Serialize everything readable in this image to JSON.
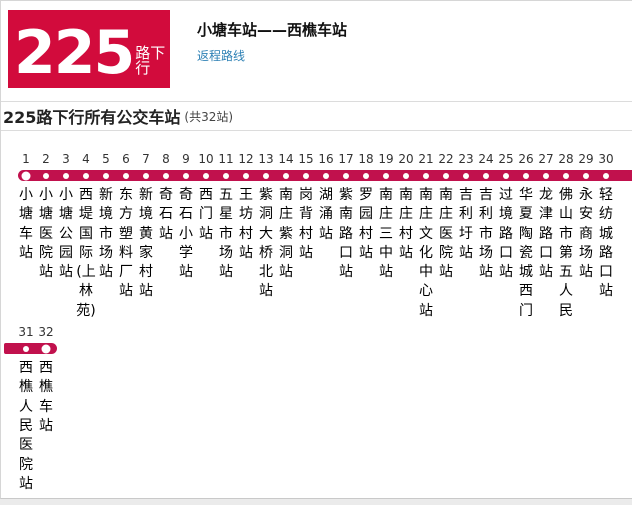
{
  "header": {
    "route_number": "225",
    "route_direction": "路下行",
    "title": "小塘车站——西樵车站",
    "return_link": "返程路线"
  },
  "section": {
    "title": "225路下行所有公交车站",
    "count": "(共32站)"
  },
  "colors": {
    "badge_red": "#d20b3c",
    "route_line": "#c1114d",
    "link_blue": "#2e81b5",
    "border_gray": "#dcdcdc"
  },
  "route": {
    "rows": [
      {
        "stations": [
          {
            "no": "1",
            "name": "小塘车站",
            "terminal": true
          },
          {
            "no": "2",
            "name": "小塘医院站"
          },
          {
            "no": "3",
            "name": "小塘公园站"
          },
          {
            "no": "4",
            "name": "西堤国际(上林苑)"
          },
          {
            "no": "5",
            "name": "新境市场站"
          },
          {
            "no": "6",
            "name": "东方塑料厂站"
          },
          {
            "no": "7",
            "name": "新境黄家村站"
          },
          {
            "no": "8",
            "name": "奇石站"
          },
          {
            "no": "9",
            "name": "奇石小学站"
          },
          {
            "no": "10",
            "name": "西门站"
          },
          {
            "no": "11",
            "name": "五星市场站"
          },
          {
            "no": "12",
            "name": "王坊村站"
          },
          {
            "no": "13",
            "name": "紫洞大桥北站"
          },
          {
            "no": "14",
            "name": "南庄紫洞站"
          },
          {
            "no": "15",
            "name": "岗背村站"
          },
          {
            "no": "16",
            "name": "湖涌站"
          },
          {
            "no": "17",
            "name": "紫南路口站"
          },
          {
            "no": "18",
            "name": "罗园村站"
          },
          {
            "no": "19",
            "name": "南庄三中站"
          },
          {
            "no": "20",
            "name": "南庄村站"
          },
          {
            "no": "21",
            "name": "南庄文化中心站"
          },
          {
            "no": "22",
            "name": "南庄医院站"
          },
          {
            "no": "23",
            "name": "吉利圩站"
          },
          {
            "no": "24",
            "name": "吉利市场站"
          },
          {
            "no": "25",
            "name": "过境路口站"
          },
          {
            "no": "26",
            "name": "华夏陶瓷城西门"
          },
          {
            "no": "27",
            "name": "龙津路口站"
          },
          {
            "no": "28",
            "name": "佛山市第五人民"
          },
          {
            "no": "29",
            "name": "永安商场站"
          },
          {
            "no": "30",
            "name": "轻纺城路口站"
          }
        ]
      },
      {
        "stations": [
          {
            "no": "31",
            "name": "西樵人民医院站"
          },
          {
            "no": "32",
            "name": "西樵车站",
            "terminal": true
          }
        ]
      }
    ]
  }
}
